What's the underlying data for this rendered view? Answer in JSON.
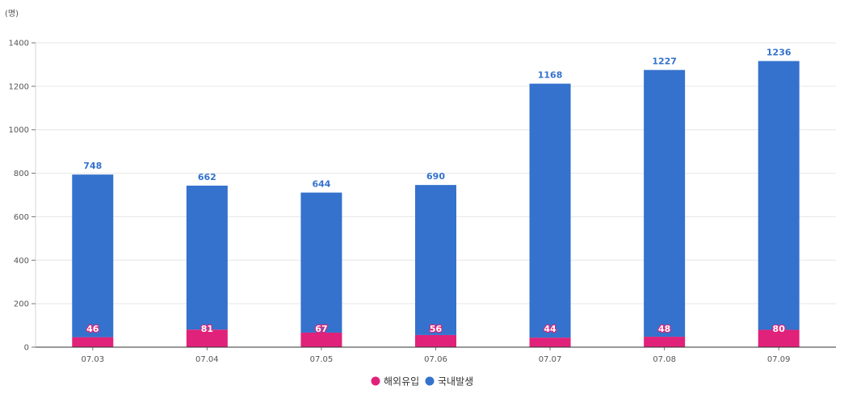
{
  "chart_data": {
    "type": "bar",
    "stacked": true,
    "unit_label": "(명)",
    "categories": [
      "07.03",
      "07.04",
      "07.05",
      "07.06",
      "07.07",
      "07.08",
      "07.09"
    ],
    "series": [
      {
        "name": "해외유입",
        "color": "#e0227a",
        "values": [
          46,
          81,
          67,
          56,
          44,
          48,
          80
        ]
      },
      {
        "name": "국내발생",
        "color": "#3472cd",
        "values": [
          748,
          662,
          644,
          690,
          1168,
          1227,
          1236
        ]
      }
    ],
    "ylim": [
      0,
      1400
    ],
    "yticks": [
      0,
      200,
      400,
      600,
      800,
      1000,
      1200,
      1400
    ],
    "grid": true,
    "legend_position": "bottom"
  }
}
